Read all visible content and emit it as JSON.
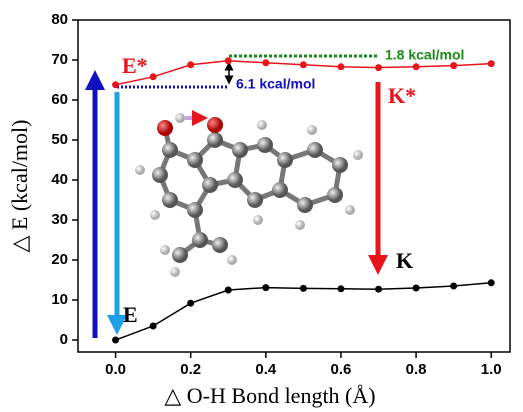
{
  "chart_data": {
    "type": "line",
    "x_label": "△ O-H Bond length (Å)",
    "y_label": "△ E (kcal/mol)",
    "x": [
      0.0,
      0.1,
      0.2,
      0.3,
      0.4,
      0.5,
      0.6,
      0.7,
      0.8,
      0.9,
      1.0
    ],
    "series": [
      {
        "name": "E*",
        "color": "#e8141c",
        "values": [
          63.8,
          65.8,
          68.8,
          69.8,
          69.3,
          68.8,
          68.3,
          68.1,
          68.3,
          68.6,
          69.1
        ]
      },
      {
        "name": "E",
        "color": "#000000",
        "values": [
          0,
          3.5,
          9.2,
          12.5,
          13.1,
          12.9,
          12.8,
          12.7,
          13.0,
          13.5,
          14.3
        ]
      }
    ],
    "xlim": [
      -0.1,
      1.05
    ],
    "ylim": [
      -3,
      80
    ],
    "xticks": [
      {
        "value": 0,
        "label": "0.0"
      },
      {
        "value": 0.2,
        "label": "0.2"
      },
      {
        "value": 0.4,
        "label": "0.4"
      },
      {
        "value": 0.6,
        "label": "0.6"
      },
      {
        "value": 0.8,
        "label": "0.8"
      },
      {
        "value": 1.0,
        "label": "1.0"
      }
    ],
    "yticks": [
      0,
      10,
      20,
      30,
      40,
      50,
      60,
      70,
      80
    ],
    "annotations": [
      "K*",
      "K",
      "6.1 kcal/mol",
      "1.8 kcal/mol"
    ]
  }
}
